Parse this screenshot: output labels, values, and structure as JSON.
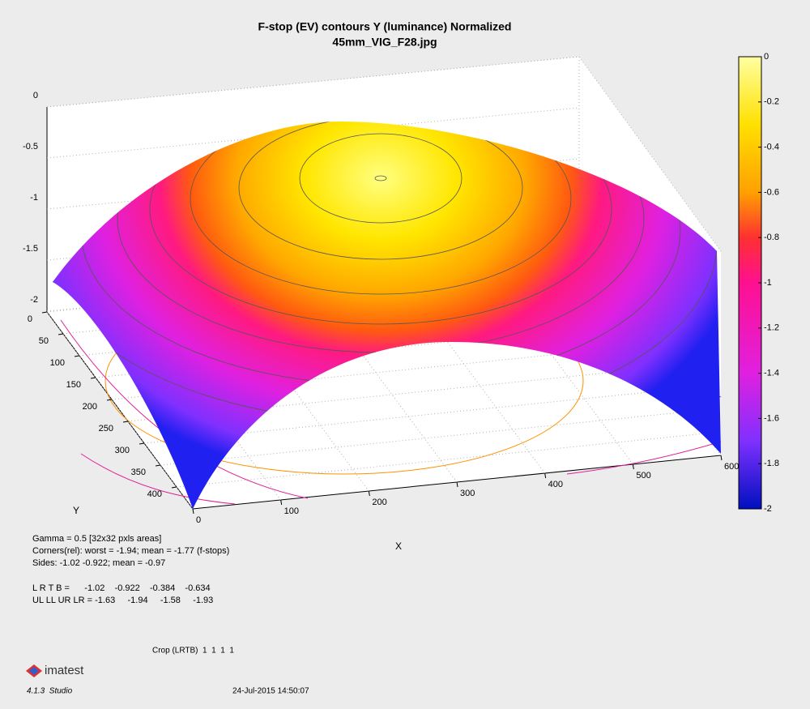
{
  "chart_data": {
    "type": "surface3d",
    "title": "F-stop (EV) contours  Y (luminance)  Normalized",
    "subtitle": "45mm_VIG_F28.jpg",
    "xlabel": "X",
    "ylabel": "Y",
    "xlim": [
      0,
      600
    ],
    "xticks": [
      0,
      100,
      200,
      300,
      400,
      500,
      600
    ],
    "ylim": [
      0,
      450
    ],
    "yticks": [
      0,
      50,
      100,
      150,
      200,
      250,
      300,
      350,
      400
    ],
    "zlim": [
      -2,
      0
    ],
    "zticks": [
      0,
      -0.5,
      -1,
      -1.5,
      -2
    ],
    "colorbar": {
      "lim": [
        -2,
        0
      ],
      "ticks": [
        0,
        -0.2,
        -0.4,
        -0.6,
        -0.8,
        -1,
        -1.2,
        -1.4,
        -1.6,
        -1.8,
        -2
      ]
    },
    "grid": true
  },
  "notes": [
    "Gamma = 0.5  [32x32 pxls areas]",
    "Corners(rel): worst = -1.94;  mean = -1.77 (f-stops)",
    "Sides: -1.02  -0.922;  mean = -0.97",
    "L R T B =      -1.02    -0.922    -0.384    -0.634",
    "UL LL UR LR = -1.63     -1.94     -1.58     -1.93"
  ],
  "crop": "Crop (LRTB)  1  1  1  1",
  "logo": "imatest",
  "version": "4.1.3  Studio",
  "date": "24-Jul-2015 14:50:07"
}
